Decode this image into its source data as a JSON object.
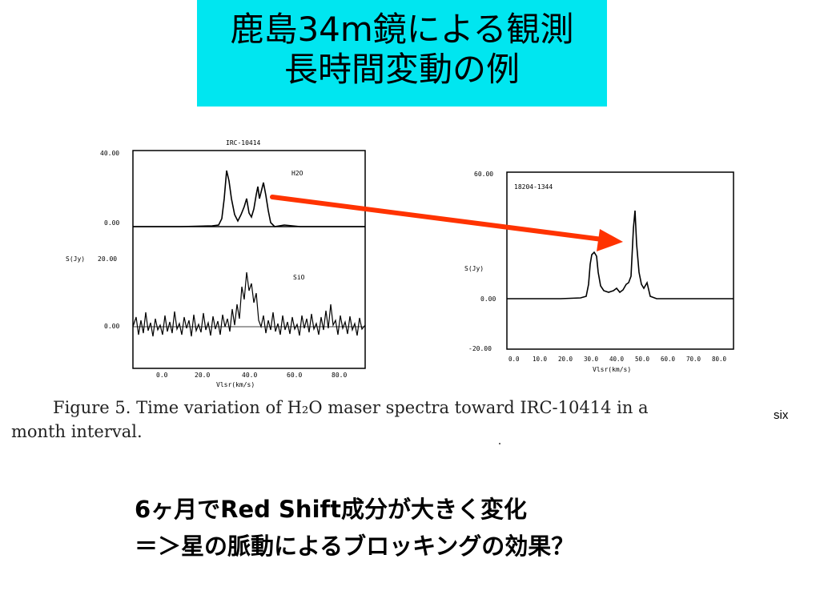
{
  "title": {
    "line1": "鹿島34m鏡による観測",
    "line2": "長時間変動の例"
  },
  "figure": {
    "left_panel": {
      "heading": "IRC-10414",
      "ylabel": "S(Jy)",
      "xlabel": "Vlsr(km/s)",
      "upper": {
        "label": "H2O",
        "yticks": [
          "40.00",
          "0.00"
        ]
      },
      "lower": {
        "label": "SiO",
        "yticks": [
          "20.00",
          "0.00"
        ]
      },
      "xticks": [
        "0.0",
        "20.0",
        "40.0",
        "60.0",
        "80.0"
      ]
    },
    "right_panel": {
      "heading": "18204-1344",
      "ylabel": "S(Jy)",
      "xlabel": "Vlsr(km/s)",
      "yticks": [
        "60.00",
        "0.00",
        "-20.00"
      ],
      "xticks": [
        "0.0",
        "10.0",
        "20.0",
        "30.0",
        "40.0",
        "50.0",
        "60.0",
        "70.0",
        "80.0"
      ]
    },
    "arrow_color": "#ff3300"
  },
  "caption": {
    "line1": "Figure 5.  Time variation of H₂O maser spectra toward IRC-10414 in a",
    "line2": "month interval.",
    "overlay": "six"
  },
  "bottom": {
    "line1": "6ヶ月でRed Shift成分が大きく変化",
    "line2": "＝＞星の脈動によるブロッキングの効果？"
  }
}
